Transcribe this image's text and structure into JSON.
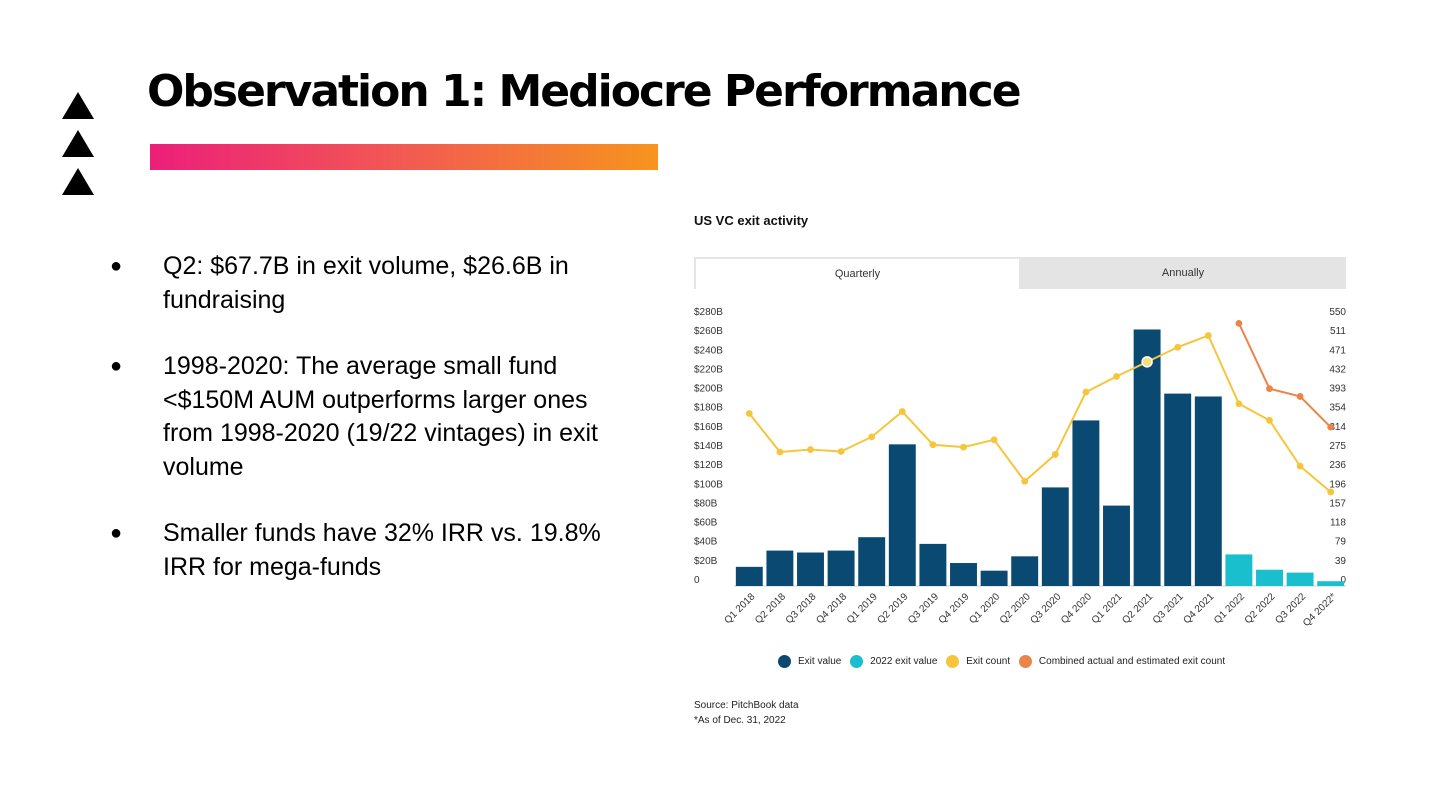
{
  "slide": {
    "title": "Observation 1: Mediocre Performance",
    "bullets": [
      "Q2: $67.7B in exit volume, $26.6B in fundraising",
      "1998-2020: The average small fund <$150M AUM outperforms larger ones from 1998-2020 (19/22 vintages) in exit volume",
      "Smaller funds have 32% IRR vs. 19.8% IRR for mega-funds"
    ],
    "bullet_glyph": "●",
    "accent_gradient": [
      "#ec1f7a",
      "#f7941d"
    ]
  },
  "tabs": {
    "quarterly": "Quarterly",
    "annually": "Annually"
  },
  "chart_data": {
    "type": "bar",
    "title": "US VC exit activity",
    "categories": [
      "Q1 2018",
      "Q2 2018",
      "Q3 2018",
      "Q4 2018",
      "Q1 2019",
      "Q2 2019",
      "Q3 2019",
      "Q4 2019",
      "Q1 2020",
      "Q2 2020",
      "Q3 2020",
      "Q4 2020",
      "Q1 2021",
      "Q2 2021",
      "Q3 2021",
      "Q4 2021",
      "Q1 2022",
      "Q2 2022",
      "Q3 2022",
      "Q4 2022*"
    ],
    "series": [
      {
        "name": "Exit value",
        "axis": "left",
        "type": "bar",
        "color": "#0a4a72",
        "values": [
          20,
          37,
          35,
          37,
          51,
          148,
          44,
          24,
          16,
          31,
          103,
          173,
          84,
          268,
          201,
          198,
          null,
          null,
          null,
          null
        ]
      },
      {
        "name": "2022 exit value",
        "axis": "left",
        "type": "bar",
        "color": "#19bfcc",
        "values": [
          null,
          null,
          null,
          null,
          null,
          null,
          null,
          null,
          null,
          null,
          null,
          null,
          null,
          null,
          null,
          null,
          33,
          17,
          14,
          5
        ]
      },
      {
        "name": "Exit count",
        "axis": "right",
        "type": "line",
        "color": "#f5c63c",
        "values": [
          354,
          275,
          280,
          276,
          306,
          358,
          290,
          285,
          300,
          215,
          270,
          398,
          430,
          460,
          490,
          514,
          374,
          340,
          246,
          193
        ]
      },
      {
        "name": "Combined actual and estimated exit count",
        "axis": "right",
        "type": "line",
        "color": "#ec8447",
        "values": [
          null,
          null,
          null,
          null,
          null,
          null,
          null,
          null,
          null,
          null,
          null,
          null,
          null,
          null,
          null,
          null,
          539,
          405,
          389,
          326
        ]
      }
    ],
    "left_axis": {
      "ticks": [
        "$280B",
        "$260B",
        "$240B",
        "$220B",
        "$200B",
        "$180B",
        "$160B",
        "$140B",
        "$120B",
        "$100B",
        "$80B",
        "$60B",
        "$40B",
        "$20B",
        "0"
      ],
      "range": [
        0,
        280
      ]
    },
    "right_axis": {
      "ticks": [
        "550",
        "511",
        "471",
        "432",
        "393",
        "354",
        "314",
        "275",
        "236",
        "196",
        "157",
        "118",
        "79",
        "39",
        "0"
      ],
      "range": [
        0,
        550
      ]
    },
    "legend": [
      "Exit value",
      "2022 exit value",
      "Exit count",
      "Combined actual and estimated exit count"
    ],
    "legend_position": "bottom",
    "grid": false
  },
  "source": {
    "line1": "Source: PitchBook data",
    "line2": "*As of Dec. 31, 2022"
  }
}
